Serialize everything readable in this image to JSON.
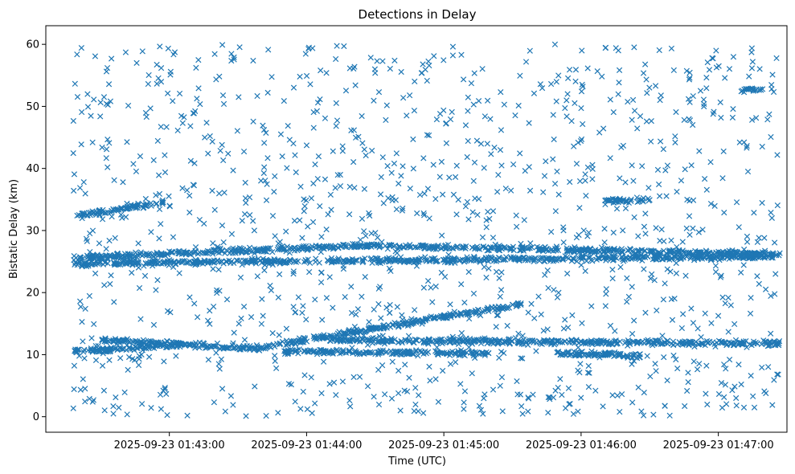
{
  "chart_data": {
    "type": "scatter",
    "title": "Detections in Delay",
    "xlabel": "Time (UTC)",
    "ylabel": "Bistatic Delay (km)",
    "marker": "x",
    "color": "#1f77b4",
    "grid": false,
    "legend": "none",
    "xlim": [
      "2025-09-23 01:42:06",
      "2025-09-23 01:47:30"
    ],
    "ylim": [
      -2.5,
      63
    ],
    "x_ticks": [
      "2025-09-23 01:43:00",
      "2025-09-23 01:44:00",
      "2025-09-23 01:45:00",
      "2025-09-23 01:46:00",
      "2025-09-23 01:47:00"
    ],
    "y_ticks": [
      0,
      10,
      20,
      30,
      40,
      50,
      60
    ],
    "time_range": [
      "2025-09-23 01:42:18",
      "2025-09-23 01:47:27"
    ],
    "tracks": [
      {
        "from": [
          "2025-09-23 01:42:18",
          32.2
        ],
        "to": [
          "2025-09-23 01:42:58",
          34.6
        ]
      },
      {
        "from": [
          "2025-09-23 01:42:18",
          24.7
        ],
        "to": [
          "2025-09-23 01:47:27",
          25.8
        ]
      },
      {
        "from": [
          "2025-09-23 01:42:18",
          25.6
        ],
        "to": [
          "2025-09-23 01:44:20",
          27.5
        ]
      },
      {
        "from": [
          "2025-09-23 01:44:20",
          27.6
        ],
        "to": [
          "2025-09-23 01:47:27",
          26.2
        ]
      },
      {
        "from": [
          "2025-09-23 01:42:30",
          12.3
        ],
        "to": [
          "2025-09-23 01:43:40",
          11.0
        ]
      },
      {
        "from": [
          "2025-09-23 01:43:40",
          11.2
        ],
        "to": [
          "2025-09-23 01:45:35",
          18.2
        ]
      },
      {
        "from": [
          "2025-09-23 01:44:10",
          12.3
        ],
        "to": [
          "2025-09-23 01:47:27",
          11.8
        ]
      },
      {
        "from": [
          "2025-09-23 01:43:50",
          10.5
        ],
        "to": [
          "2025-09-23 01:45:20",
          10.2
        ]
      },
      {
        "from": [
          "2025-09-23 01:45:50",
          10.2
        ],
        "to": [
          "2025-09-23 01:46:30",
          9.8
        ]
      },
      {
        "from": [
          "2025-09-23 01:42:18",
          10.5
        ],
        "to": [
          "2025-09-23 01:43:05",
          11.5
        ]
      },
      {
        "from": [
          "2025-09-23 01:46:10",
          34.8
        ],
        "to": [
          "2025-09-23 01:46:30",
          34.8
        ]
      },
      {
        "from": [
          "2025-09-23 01:47:10",
          52.5
        ],
        "to": [
          "2025-09-23 01:47:20",
          52.8
        ]
      }
    ],
    "noise": {
      "y_range": [
        0,
        60
      ],
      "count": 1200
    }
  }
}
